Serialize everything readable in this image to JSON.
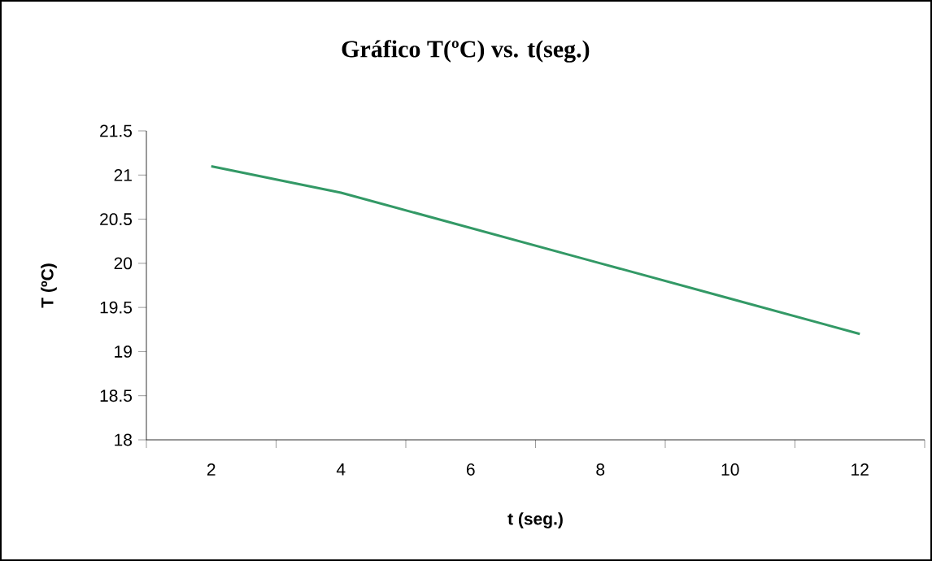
{
  "chart_data": {
    "type": "line",
    "title": "Gráfico T(ºC) vs. t(seg.)",
    "xlabel": "t (seg.)",
    "ylabel": "T (ºC)",
    "categories": [
      "2",
      "4",
      "6",
      "8",
      "10",
      "12"
    ],
    "values": [
      21.1,
      20.8,
      20.4,
      20.0,
      19.6,
      19.2
    ],
    "color": "#339966",
    "ylim": [
      18,
      21.5
    ],
    "yticks": [
      18,
      18.5,
      19,
      19.5,
      20,
      20.5,
      21,
      21.5
    ]
  }
}
